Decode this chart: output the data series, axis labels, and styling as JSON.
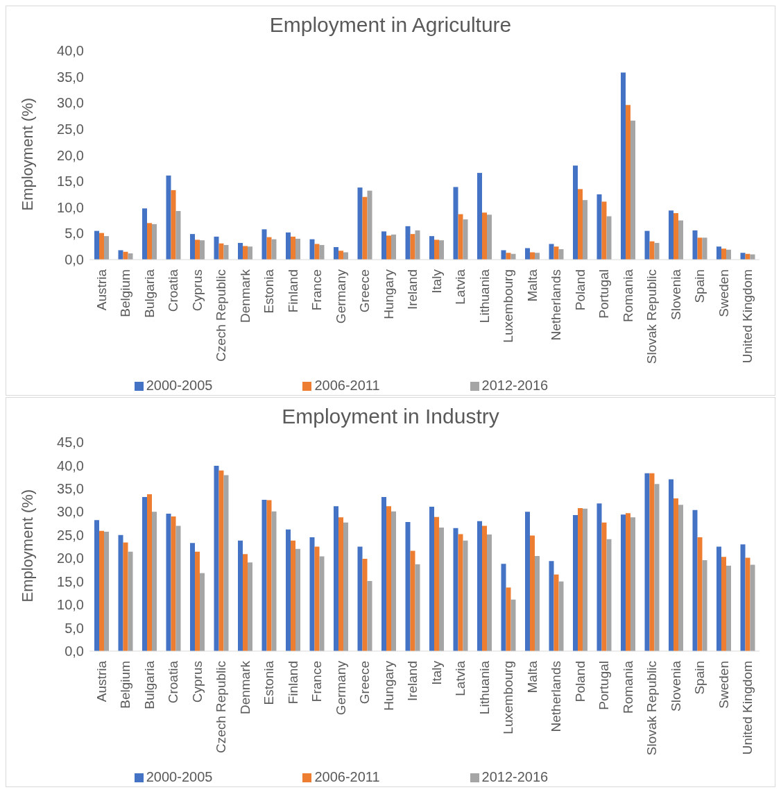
{
  "chart_data": [
    {
      "type": "bar",
      "title": "Employment in Agriculture",
      "ylabel": "Employment (%)",
      "categories": [
        "Austria",
        "Belgium",
        "Bulgaria",
        "Croatia",
        "Cyprus",
        "Czech Republic",
        "Denmark",
        "Estonia",
        "Finland",
        "France",
        "Germany",
        "Greece",
        "Hungary",
        "Ireland",
        "Italy",
        "Latvia",
        "Lithuania",
        "Luxembourg",
        "Malta",
        "Netherlands",
        "Poland",
        "Portugal",
        "Romania",
        "Slovak Republic",
        "Slovenia",
        "Spain",
        "Sweden",
        "United Kingdom"
      ],
      "series": [
        {
          "name": "2000-2005",
          "color": "#4472c4",
          "values": [
            5.5,
            1.8,
            9.8,
            16.1,
            4.9,
            4.4,
            3.2,
            5.8,
            5.2,
            3.9,
            2.4,
            13.8,
            5.4,
            6.4,
            4.5,
            13.9,
            16.6,
            1.8,
            2.2,
            3.0,
            18.0,
            12.5,
            35.8,
            5.5,
            9.4,
            5.6,
            2.5,
            1.3
          ]
        },
        {
          "name": "2006-2011",
          "color": "#ed7d31",
          "values": [
            5.1,
            1.5,
            7.0,
            13.3,
            3.8,
            3.1,
            2.6,
            4.3,
            4.4,
            3.0,
            1.7,
            12.0,
            4.6,
            4.9,
            3.8,
            8.7,
            9.0,
            1.3,
            1.4,
            2.5,
            13.5,
            11.1,
            29.6,
            3.5,
            8.9,
            4.2,
            2.1,
            1.1
          ]
        },
        {
          "name": "2012-2016",
          "color": "#a5a5a5",
          "values": [
            4.5,
            1.2,
            6.8,
            9.3,
            3.7,
            2.8,
            2.5,
            3.9,
            4.0,
            2.8,
            1.4,
            13.2,
            4.8,
            5.6,
            3.7,
            7.7,
            8.6,
            1.1,
            1.3,
            2.0,
            11.4,
            8.3,
            26.6,
            3.2,
            7.5,
            4.2,
            1.9,
            1.0
          ]
        }
      ],
      "ylim": [
        0,
        40
      ],
      "yticks": [
        {
          "value": 0,
          "label": "0,0"
        },
        {
          "value": 5,
          "label": "5,0"
        },
        {
          "value": 10,
          "label": "10,0"
        },
        {
          "value": 15,
          "label": "15,0"
        },
        {
          "value": 20,
          "label": "20,0"
        },
        {
          "value": 25,
          "label": "25,0"
        },
        {
          "value": 30,
          "label": "30,0"
        },
        {
          "value": 35,
          "label": "35,0"
        },
        {
          "value": 40,
          "label": "40,0"
        }
      ],
      "grid": false,
      "legend": "bottom"
    },
    {
      "type": "bar",
      "title": "Employment in Industry",
      "ylabel": "Employment (%)",
      "categories": [
        "Austria",
        "Belgium",
        "Bulgaria",
        "Croatia",
        "Cyprus",
        "Czech Republic",
        "Denmark",
        "Estonia",
        "Finland",
        "France",
        "Germany",
        "Greece",
        "Hungary",
        "Ireland",
        "Italy",
        "Latvia",
        "Lithuania",
        "Luxembourg",
        "Malta",
        "Netherlands",
        "Poland",
        "Portugal",
        "Romania",
        "Slovak Republic",
        "Slovenia",
        "Spain",
        "Sweden",
        "United Kingdom"
      ],
      "series": [
        {
          "name": "2000-2005",
          "color": "#4472c4",
          "values": [
            28.2,
            25.0,
            33.2,
            29.6,
            23.3,
            39.9,
            23.8,
            32.6,
            26.2,
            24.5,
            31.2,
            22.5,
            33.2,
            27.8,
            31.1,
            26.5,
            28.0,
            18.8,
            30.0,
            19.4,
            29.3,
            31.8,
            29.4,
            38.3,
            37.0,
            30.4,
            22.5,
            23.0
          ]
        },
        {
          "name": "2006-2011",
          "color": "#ed7d31",
          "values": [
            25.9,
            23.4,
            33.8,
            29.0,
            21.4,
            38.9,
            20.9,
            32.5,
            23.8,
            22.5,
            28.8,
            19.9,
            31.2,
            21.6,
            28.9,
            25.2,
            27.0,
            13.7,
            24.9,
            16.5,
            30.8,
            27.7,
            29.7,
            38.3,
            32.9,
            24.5,
            20.3,
            20.1
          ]
        },
        {
          "name": "2012-2016",
          "color": "#a5a5a5",
          "values": [
            25.7,
            21.4,
            30.0,
            27.0,
            16.8,
            37.9,
            19.1,
            30.1,
            22.0,
            20.4,
            27.7,
            15.1,
            30.1,
            18.7,
            26.6,
            23.8,
            25.1,
            11.1,
            20.5,
            15.0,
            30.7,
            24.1,
            28.8,
            36.0,
            31.5,
            19.6,
            18.4,
            18.6
          ]
        }
      ],
      "ylim": [
        0,
        45
      ],
      "yticks": [
        {
          "value": 0,
          "label": "0,0"
        },
        {
          "value": 5,
          "label": "5,0"
        },
        {
          "value": 10,
          "label": "10,0"
        },
        {
          "value": 15,
          "label": "15,0"
        },
        {
          "value": 20,
          "label": "20,0"
        },
        {
          "value": 25,
          "label": "25,0"
        },
        {
          "value": 30,
          "label": "30,0"
        },
        {
          "value": 35,
          "label": "35,0"
        },
        {
          "value": 40,
          "label": "40,0"
        },
        {
          "value": 45,
          "label": "45,0"
        }
      ],
      "grid": false,
      "legend": "bottom"
    }
  ]
}
